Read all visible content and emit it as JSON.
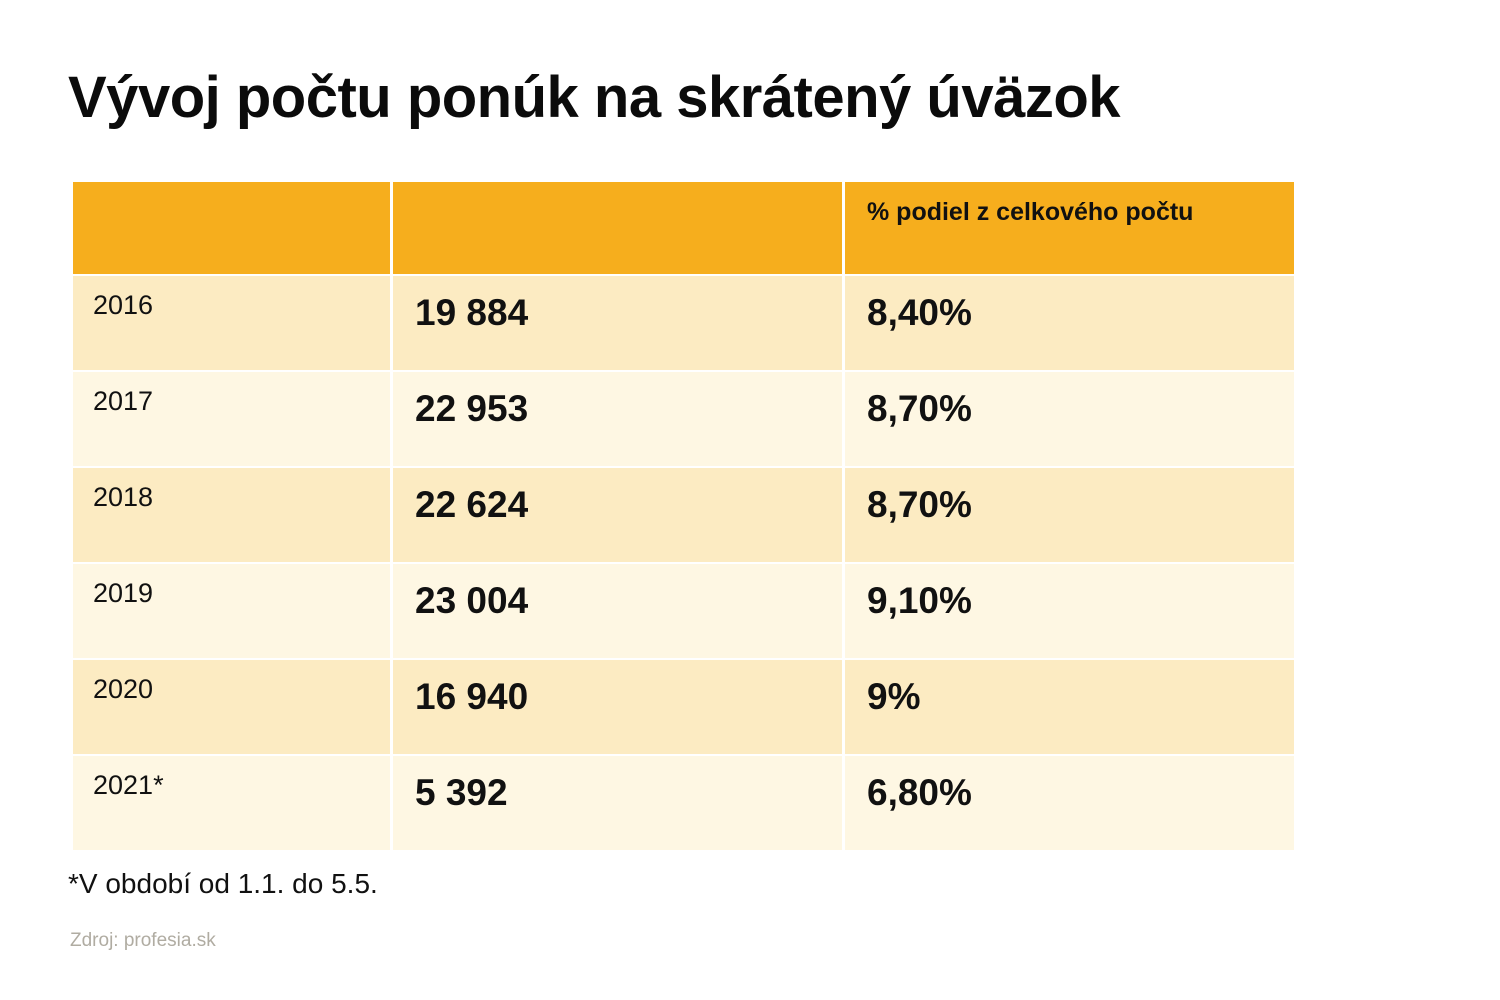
{
  "title": "Vývoj počtu ponúk na skrátený úväzok",
  "table": {
    "headers": [
      "",
      "",
      "% podiel z celkového počtu"
    ],
    "rows": [
      {
        "year": "2016",
        "count": "19 884",
        "share": "8,40%"
      },
      {
        "year": "2017",
        "count": "22 953",
        "share": "8,70%"
      },
      {
        "year": "2018",
        "count": "22 624",
        "share": "8,70%"
      },
      {
        "year": "2019",
        "count": "23 004",
        "share": "9,10%"
      },
      {
        "year": "2020",
        "count": "16 940",
        "share": "9%"
      },
      {
        "year": "2021*",
        "count": "5 392",
        "share": "6,80%"
      }
    ]
  },
  "footnote": "*V období od 1.1. do 5.5.",
  "source": "Zdroj: profesia.sk",
  "colors": {
    "header": "#f6ae1d",
    "row_odd": "#fcebc2",
    "row_even": "#fef7e3"
  }
}
